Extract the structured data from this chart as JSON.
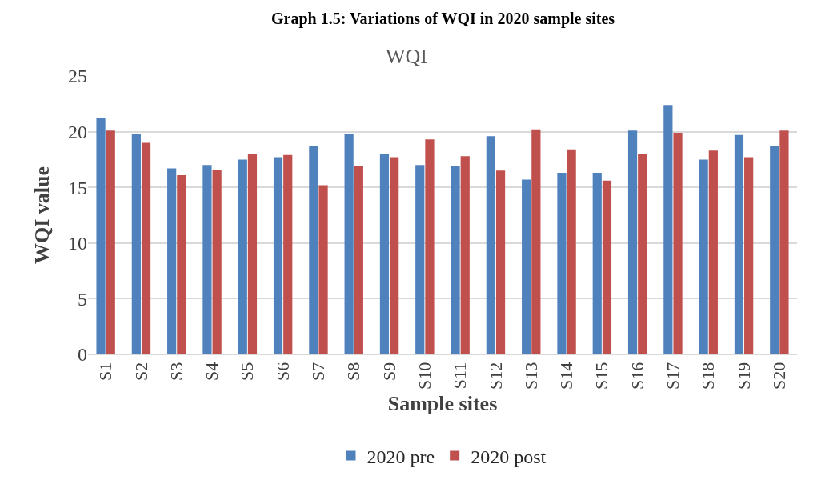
{
  "chart_data": {
    "type": "bar",
    "title": "WQI",
    "xlabel": "Sample sites",
    "ylabel": "WQI value",
    "annotations": [
      "Graph 1.5: Variations of WQI in 2020 sample sites"
    ],
    "categories": [
      "S1",
      "S2",
      "S3",
      "S4",
      "S5",
      "S6",
      "S7",
      "S8",
      "S9",
      "S10",
      "S11",
      "S12",
      "S13",
      "S14",
      "S15",
      "S16",
      "S17",
      "S18",
      "S19",
      "S20"
    ],
    "series": [
      {
        "name": "2020 pre",
        "color": "#4f81bd",
        "values": [
          21.2,
          19.8,
          16.7,
          17.0,
          17.5,
          17.7,
          18.7,
          19.8,
          18.0,
          17.0,
          16.9,
          19.6,
          15.7,
          16.3,
          16.3,
          20.1,
          22.4,
          17.5,
          19.7,
          18.7
        ]
      },
      {
        "name": "2020 post",
        "color": "#c0504d",
        "values": [
          20.1,
          19.0,
          16.1,
          16.6,
          18.0,
          17.9,
          15.2,
          16.9,
          17.7,
          19.3,
          17.8,
          16.5,
          20.2,
          18.4,
          15.6,
          18.0,
          19.9,
          18.3,
          17.7,
          20.1
        ]
      }
    ],
    "ylim": [
      0,
      25
    ],
    "yticks": [
      0,
      5,
      10,
      15,
      20,
      25
    ],
    "grid": "y",
    "legend": "bottom"
  }
}
